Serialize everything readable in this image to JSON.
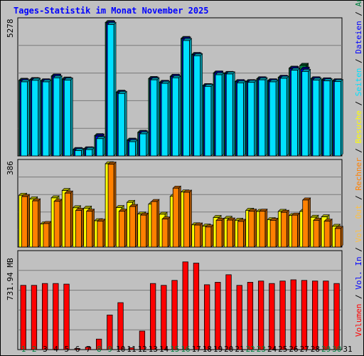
{
  "title": "Tages-Statistik im Monat November 2025",
  "colors": {
    "background": "#c0c0c0",
    "title": "#0000ff",
    "anfragen": "#008040",
    "dateien": "#0000ff",
    "seiten": "#00e0ff",
    "besuche": "#ffff00",
    "rechner": "#ff8000",
    "vol_out": "#ffc040",
    "vol_in": "#0000ff",
    "volumen": "#ff0000",
    "weekend_day": "#008040",
    "weekday": "#000000"
  },
  "chart_data": [
    {
      "type": "bar",
      "panel": "hits",
      "max_label": "5278",
      "ylim": [
        0,
        5278
      ],
      "grid": true,
      "legend_placement": "right",
      "x": [
        1,
        2,
        3,
        4,
        5,
        6,
        7,
        8,
        9,
        10,
        11,
        12,
        13,
        14,
        15,
        16,
        17,
        18,
        19,
        20,
        21,
        22,
        23,
        24,
        25,
        26,
        27,
        28,
        29,
        30
      ],
      "series": [
        {
          "name": "Anfragen",
          "values": [
            2980,
            3010,
            2960,
            3150,
            3030,
            250,
            280,
            800,
            5260,
            2510,
            620,
            930,
            3050,
            2900,
            3140,
            4630,
            4000,
            2770,
            3270,
            3250,
            2930,
            2930,
            3040,
            2960,
            3100,
            3460,
            3570,
            3040,
            3000,
            2960
          ]
        },
        {
          "name": "Dateien",
          "values": [
            2960,
            3000,
            2950,
            3140,
            3010,
            240,
            270,
            780,
            5230,
            2490,
            600,
            910,
            3030,
            2890,
            3130,
            4610,
            3980,
            2760,
            3260,
            3240,
            2920,
            2920,
            3030,
            2950,
            3090,
            3440,
            3420,
            3030,
            2990,
            2950
          ]
        },
        {
          "name": "Seiten",
          "values": [
            2920,
            2980,
            2920,
            3080,
            2990,
            210,
            250,
            680,
            5180,
            2460,
            560,
            870,
            3000,
            2860,
            3080,
            4550,
            3950,
            2740,
            3200,
            3230,
            2880,
            2900,
            3000,
            2920,
            3060,
            3380,
            3330,
            2990,
            2960,
            2930
          ]
        }
      ]
    },
    {
      "type": "bar",
      "panel": "visits",
      "max_label": "386",
      "ylim": [
        0,
        386
      ],
      "grid": true,
      "x": [
        1,
        2,
        3,
        4,
        5,
        6,
        7,
        8,
        9,
        10,
        11,
        12,
        13,
        14,
        15,
        16,
        17,
        18,
        19,
        20,
        21,
        22,
        23,
        24,
        25,
        26,
        27,
        28,
        29,
        30
      ],
      "series": [
        {
          "name": "Besuche",
          "values": [
            240,
            223,
            107,
            228,
            262,
            182,
            180,
            122,
            386,
            183,
            207,
            153,
            199,
            152,
            235,
            255,
            103,
            97,
            137,
            133,
            124,
            170,
            165,
            127,
            165,
            146,
            165,
            138,
            140,
            96
          ]
        },
        {
          "name": "Rechner",
          "values": [
            234,
            214,
            109,
            212,
            250,
            170,
            166,
            120,
            384,
            166,
            188,
            148,
            211,
            130,
            273,
            254,
            102,
            93,
            124,
            125,
            119,
            166,
            166,
            124,
            161,
            148,
            218,
            124,
            120,
            86
          ]
        }
      ]
    },
    {
      "type": "bar",
      "panel": "volume",
      "unit": "MB",
      "max_label": "731.94 MB",
      "ylim": [
        0,
        731.94
      ],
      "grid": true,
      "x": [
        1,
        2,
        3,
        4,
        5,
        6,
        7,
        8,
        9,
        10,
        11,
        12,
        13,
        14,
        15,
        16,
        17,
        18,
        19,
        20,
        21,
        22,
        23,
        24,
        25,
        26,
        27,
        28,
        29,
        30
      ],
      "series": [
        {
          "name": "Volumen",
          "values": [
            520,
            520,
            535,
            535,
            530,
            8,
            20,
            85,
            280,
            380,
            15,
            150,
            535,
            520,
            560,
            710,
            700,
            525,
            545,
            606,
            520,
            545,
            555,
            535,
            555,
            565,
            560,
            555,
            555,
            535
          ]
        }
      ]
    }
  ],
  "right_legend": [
    {
      "text": "Volumen",
      "color": "#ff0000"
    },
    {
      "text": " / ",
      "color": "#000000"
    },
    {
      "text": "Vol. In",
      "color": "#0000ff"
    },
    {
      "text": " / ",
      "color": "#000000"
    },
    {
      "text": "Vol. Out",
      "color": "#ffc040"
    },
    {
      "text": " / ",
      "color": "#000000"
    },
    {
      "text": "Rechner",
      "color": "#ff8000"
    },
    {
      "text": " / ",
      "color": "#000000"
    },
    {
      "text": "Besuche",
      "color": "#ffff00"
    },
    {
      "text": " / ",
      "color": "#000000"
    },
    {
      "text": "Seiten",
      "color": "#00e0ff"
    },
    {
      "text": " / ",
      "color": "#000000"
    },
    {
      "text": "Dateien",
      "color": "#0000ff"
    },
    {
      "text": " / ",
      "color": "#000000"
    },
    {
      "text": "Anfragen",
      "color": "#008040"
    }
  ],
  "x_tick_labels": [
    "1",
    "2",
    "3",
    "4",
    "5",
    "6",
    "7",
    "8",
    "9",
    "10",
    "11",
    "12",
    "13",
    "14",
    "15",
    "16",
    "17",
    "18",
    "19",
    "20",
    "21",
    "22",
    "23",
    "24",
    "25",
    "26",
    "27",
    "28",
    "29",
    "30",
    "31"
  ],
  "weekend_days": [
    1,
    2,
    8,
    9,
    15,
    16,
    22,
    23,
    29,
    30
  ]
}
